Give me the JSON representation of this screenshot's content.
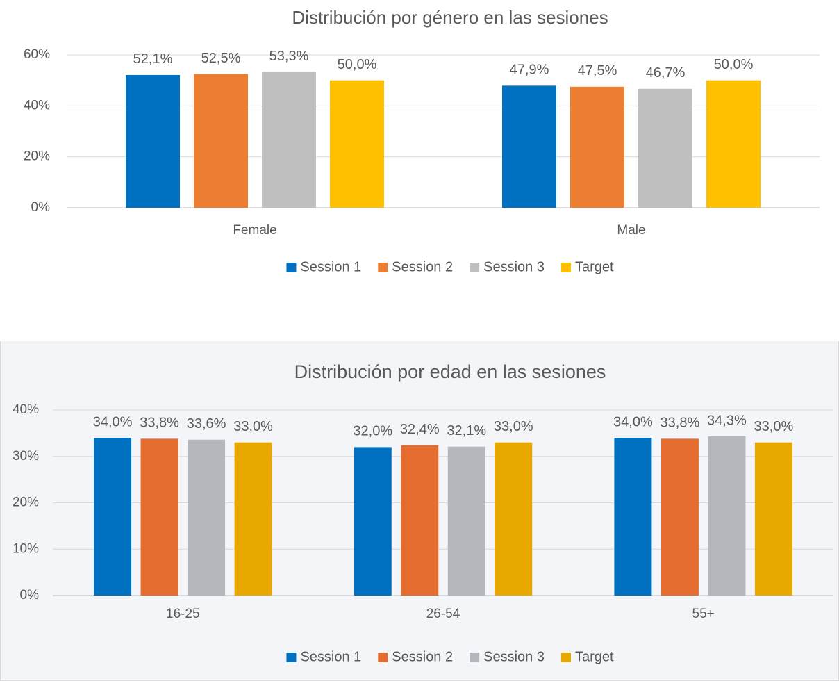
{
  "chart_data": [
    {
      "type": "bar",
      "title": "Distribución por género en las sesiones",
      "categories": [
        "Female",
        "Male"
      ],
      "series": [
        {
          "name": "Session 1",
          "color": "#0070c0",
          "values": [
            52.1,
            47.9
          ],
          "value_labels": [
            "52,1%",
            "47,9%"
          ]
        },
        {
          "name": "Session 2",
          "color": "#ed7d31",
          "values": [
            52.5,
            47.5
          ],
          "value_labels": [
            "52,5%",
            "47,5%"
          ]
        },
        {
          "name": "Session 3",
          "color": "#bfbfbf",
          "values": [
            53.3,
            46.7
          ],
          "value_labels": [
            "53,3%",
            "46,7%"
          ]
        },
        {
          "name": "Target",
          "color": "#ffc000",
          "values": [
            50.0,
            50.0
          ],
          "value_labels": [
            "50,0%",
            "50,0%"
          ]
        }
      ],
      "ylim": [
        0,
        60
      ],
      "yticks": [
        {
          "value": 0,
          "label": "0%"
        },
        {
          "value": 20,
          "label": "20%"
        },
        {
          "value": 40,
          "label": "40%"
        },
        {
          "value": 60,
          "label": "60%"
        }
      ],
      "grid": true,
      "legend": "bottom"
    },
    {
      "type": "bar",
      "title": "Distribución por edad en las sesiones",
      "categories": [
        "16-25",
        "26-54",
        "55+"
      ],
      "series": [
        {
          "name": "Session 1",
          "color": "#0070c0",
          "values": [
            34.0,
            32.0,
            34.0
          ],
          "value_labels": [
            "34,0%",
            "32,0%",
            "34,0%"
          ]
        },
        {
          "name": "Session 2",
          "color": "#e46c2e",
          "values": [
            33.8,
            32.4,
            33.8
          ],
          "value_labels": [
            "33,8%",
            "32,4%",
            "33,8%"
          ]
        },
        {
          "name": "Session 3",
          "color": "#b4b8bc",
          "values": [
            33.6,
            32.1,
            34.3
          ],
          "value_labels": [
            "33,6%",
            "32,1%",
            "34,3%"
          ]
        },
        {
          "name": "Target",
          "color": "#e9a800",
          "values": [
            33.0,
            33.0,
            33.0
          ],
          "value_labels": [
            "33,0%",
            "33,0%",
            "33,0%"
          ]
        }
      ],
      "ylim": [
        0,
        40
      ],
      "yticks": [
        {
          "value": 0,
          "label": "0%"
        },
        {
          "value": 10,
          "label": "10%"
        },
        {
          "value": 20,
          "label": "20%"
        },
        {
          "value": 30,
          "label": "30%"
        },
        {
          "value": 40,
          "label": "40%"
        }
      ],
      "grid": true,
      "legend": "bottom"
    }
  ]
}
